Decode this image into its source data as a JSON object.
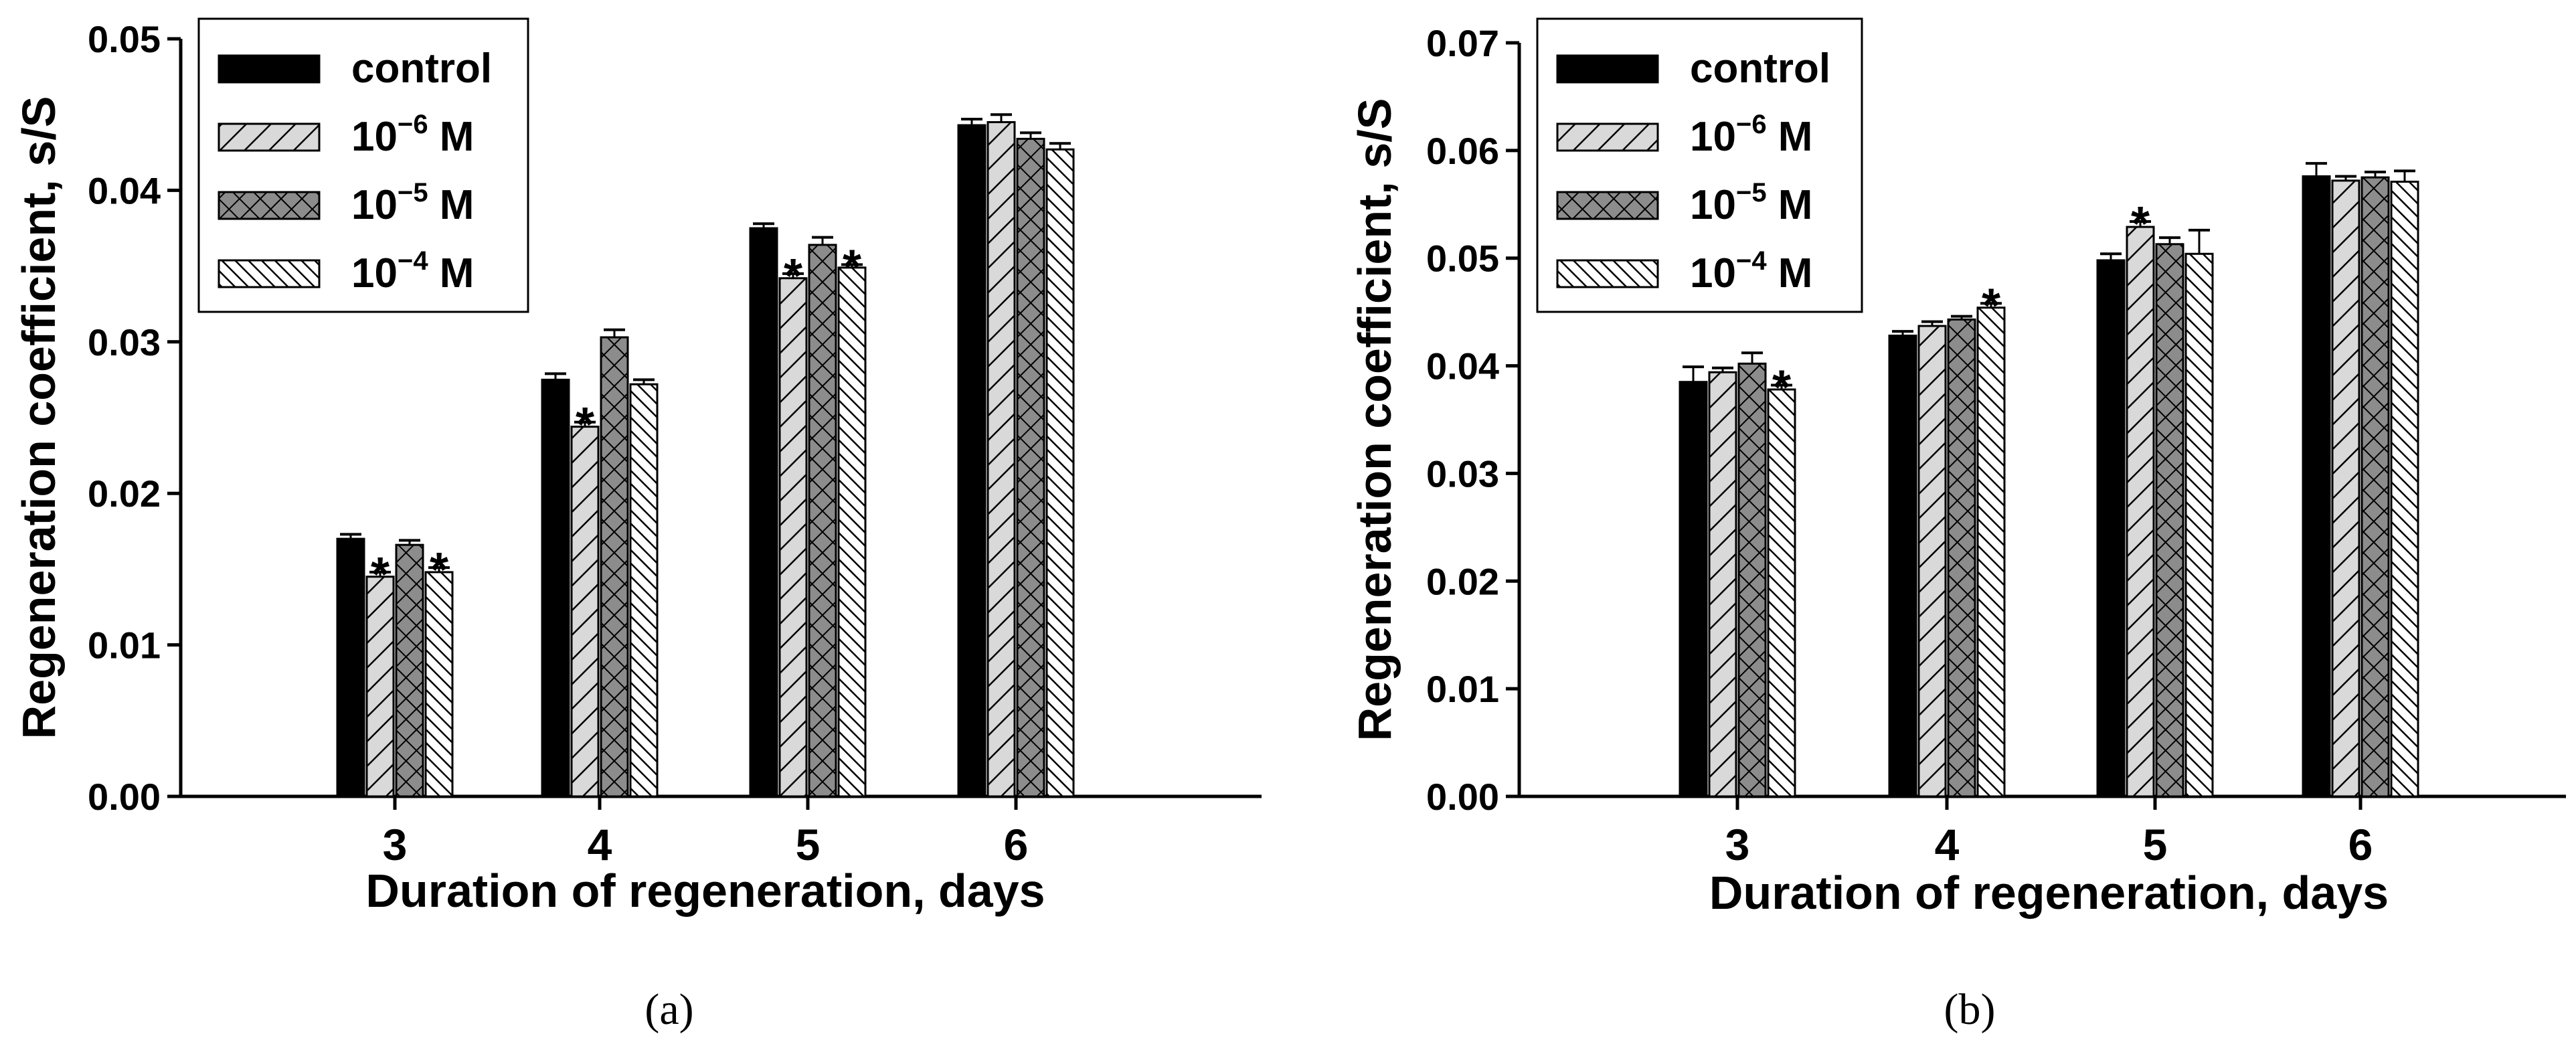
{
  "chart_data": [
    {
      "type": "bar",
      "panel": "a",
      "caption": "(a)",
      "xlabel": "Duration of regeneration, days",
      "ylabel": "Regeneration coefficient, s/S",
      "ylim": [
        0,
        0.05
      ],
      "yticks": [
        "0.00",
        "0.01",
        "0.02",
        "0.03",
        "0.04",
        "0.05"
      ],
      "categories": [
        "3",
        "4",
        "5",
        "6"
      ],
      "legend_position": "top-left",
      "series": [
        {
          "name": "control",
          "base": "10",
          "exp": "",
          "unit": "",
          "pattern": "solid",
          "values": [
            0.017,
            0.0275,
            0.0375,
            0.0443
          ],
          "errors": [
            0.0003,
            0.0004,
            0.0003,
            0.0004
          ]
        },
        {
          "name": "10−6 M",
          "base": "10",
          "exp": "−6",
          "unit": " M",
          "pattern": "diag-light",
          "values": [
            0.0145,
            0.0244,
            0.0342,
            0.0445
          ],
          "errors": [
            0.0003,
            0.0003,
            0.0003,
            0.0005
          ]
        },
        {
          "name": "10−5 M",
          "base": "10",
          "exp": "−5",
          "unit": " M",
          "pattern": "crosshatch",
          "values": [
            0.0166,
            0.0303,
            0.0364,
            0.0434
          ],
          "errors": [
            0.0003,
            0.0005,
            0.0005,
            0.0004
          ]
        },
        {
          "name": "10−4 M",
          "base": "10",
          "exp": "−4",
          "unit": " M",
          "pattern": "diag-dense",
          "values": [
            0.0148,
            0.0272,
            0.0349,
            0.0427
          ],
          "errors": [
            0.0003,
            0.0003,
            0.0002,
            0.0004
          ]
        }
      ],
      "significance": [
        {
          "category": 0,
          "series": 1,
          "label": "*"
        },
        {
          "category": 0,
          "series": 3,
          "label": "*"
        },
        {
          "category": 1,
          "series": 1,
          "label": "*"
        },
        {
          "category": 2,
          "series": 1,
          "label": "*"
        },
        {
          "category": 2,
          "series": 3,
          "label": "*"
        }
      ]
    },
    {
      "type": "bar",
      "panel": "b",
      "caption": "(b)",
      "xlabel": "Duration of regeneration, days",
      "ylabel": "Regeneration coefficient, s/S",
      "ylim": [
        0,
        0.07
      ],
      "yticks": [
        "0.00",
        "0.01",
        "0.02",
        "0.03",
        "0.04",
        "0.05",
        "0.06",
        "0.07"
      ],
      "categories": [
        "3",
        "4",
        "5",
        "6"
      ],
      "legend_position": "top-left",
      "series": [
        {
          "name": "control",
          "base": "10",
          "exp": "",
          "unit": "",
          "pattern": "solid",
          "values": [
            0.0385,
            0.0428,
            0.0498,
            0.0576
          ],
          "errors": [
            0.0014,
            0.0004,
            0.0006,
            0.0012
          ]
        },
        {
          "name": "10−6 M",
          "base": "10",
          "exp": "−6",
          "unit": " M",
          "pattern": "diag-light",
          "values": [
            0.0394,
            0.0437,
            0.0529,
            0.0572
          ],
          "errors": [
            0.0004,
            0.0004,
            0.0005,
            0.0004
          ]
        },
        {
          "name": "10−5 M",
          "base": "10",
          "exp": "−5",
          "unit": " M",
          "pattern": "crosshatch",
          "values": [
            0.0402,
            0.0443,
            0.0513,
            0.0575
          ],
          "errors": [
            0.001,
            0.0003,
            0.0006,
            0.0005
          ]
        },
        {
          "name": "10−4 M",
          "base": "10",
          "exp": "−4",
          "unit": " M",
          "pattern": "diag-dense",
          "values": [
            0.0378,
            0.0454,
            0.0504,
            0.0571
          ],
          "errors": [
            0.0004,
            0.0004,
            0.0022,
            0.001
          ]
        }
      ],
      "significance": [
        {
          "category": 0,
          "series": 3,
          "label": "*"
        },
        {
          "category": 1,
          "series": 3,
          "label": "*"
        },
        {
          "category": 2,
          "series": 1,
          "label": "*"
        }
      ]
    }
  ],
  "colors": {
    "solid": "#000000",
    "diag-light": "#d9d9d9",
    "crosshatch": "#8c8c8c",
    "diag-dense": "#ffffff",
    "stroke": "#000000"
  }
}
